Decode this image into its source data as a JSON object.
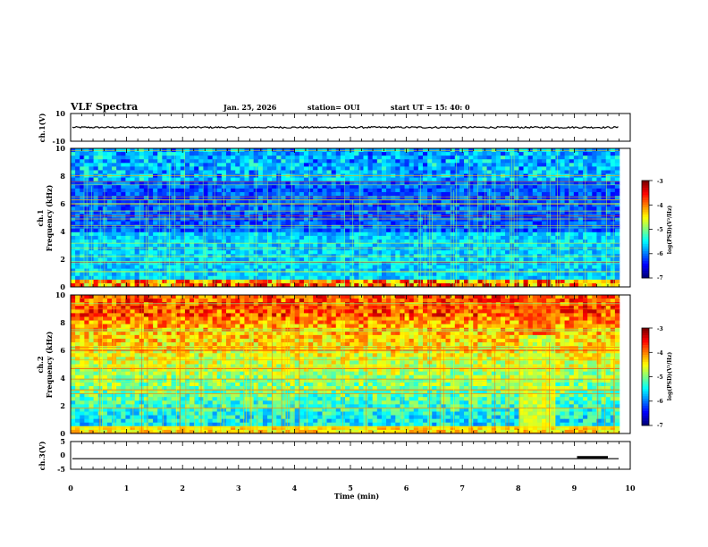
{
  "header": {
    "title": "VLF Spectra",
    "date": "Jan. 25, 2026",
    "station": "station= OUI",
    "start": "start  UT =   15: 40: 0"
  },
  "colors": {
    "axis": "#000000",
    "colormap": [
      "#00007f",
      "#0000ff",
      "#0080ff",
      "#00ffff",
      "#80ff80",
      "#ffff00",
      "#ff8000",
      "#ff0000",
      "#7f0000"
    ]
  },
  "chart_data": [
    {
      "type": "line",
      "name": "ch1-waveform",
      "ylabel": "ch.1(V)",
      "ylim": [
        -10,
        10
      ],
      "yticks": [
        "10",
        "-10"
      ],
      "mean": 0,
      "noise_amplitude": 0.6,
      "xlim": [
        0,
        10
      ]
    },
    {
      "type": "heatmap",
      "name": "ch1-spectrogram",
      "ylabel_line1": "ch.1",
      "ylabel_line2": "Frequency (kHz)",
      "ylim": [
        0,
        10
      ],
      "yticks": [
        "0",
        "2",
        "4",
        "6",
        "8",
        "10"
      ],
      "xlim": [
        0,
        10
      ],
      "colorbar": {
        "label": "log(PSD)(V²/Hz)",
        "range": [
          -7,
          -3
        ],
        "ticks": [
          "-3",
          "-4",
          "-5",
          "-6",
          "-7"
        ]
      }
    },
    {
      "type": "heatmap",
      "name": "ch2-spectrogram",
      "ylabel_line1": "ch.2",
      "ylabel_line2": "Frequency (kHz)",
      "ylim": [
        0,
        10
      ],
      "yticks": [
        "0",
        "2",
        "4",
        "6",
        "8",
        "10"
      ],
      "xlim": [
        0,
        10
      ],
      "burst_interval_min": [
        8.0,
        8.65
      ],
      "colorbar": {
        "label": "log(PSD)(V²/Hz)",
        "range": [
          -7,
          -3
        ],
        "ticks": [
          "-3",
          "-4",
          "-5",
          "-6",
          "-7"
        ]
      }
    },
    {
      "type": "line",
      "name": "ch3-waveform",
      "ylabel": "ch.3(V)",
      "ylim": [
        -5,
        5
      ],
      "yticks": [
        "5",
        "0",
        "-5"
      ],
      "level": -1.2,
      "step_interval_min": [
        9.05,
        9.6
      ],
      "step_level": -0.6,
      "xlim": [
        0,
        10
      ],
      "xlabel": "Time (min)",
      "xticks": [
        "0",
        "1",
        "2",
        "3",
        "4",
        "5",
        "6",
        "7",
        "8",
        "9",
        "10"
      ]
    }
  ]
}
